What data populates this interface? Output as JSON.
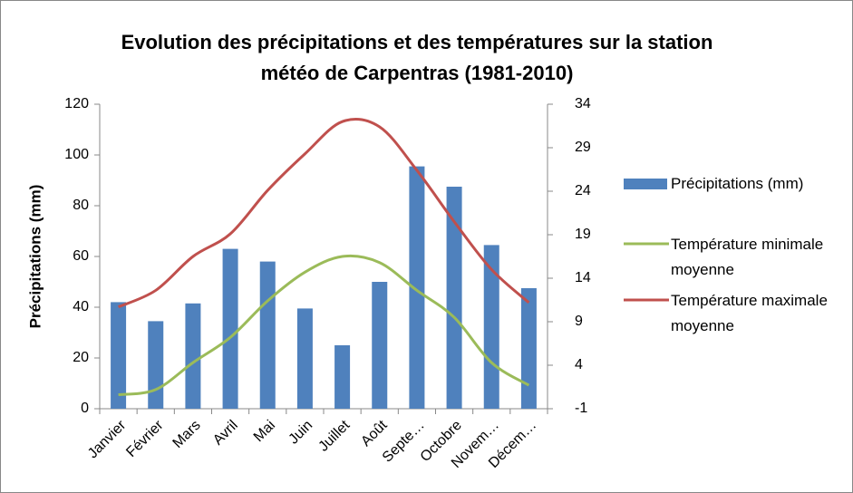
{
  "chart_data": {
    "type": "bar",
    "title": "Evolution des précipitations et des températures sur la station météo de Carpentras (1981-2010)",
    "y_label": "Précipitations (mm)",
    "categories": [
      "Janvier",
      "Février",
      "Mars",
      "Avril",
      "Mai",
      "Juin",
      "Juillet",
      "Août",
      "Septe…",
      "Octobre",
      "Novem…",
      "Décem…"
    ],
    "series": [
      {
        "name": "Précipitations (mm)",
        "type": "bar",
        "color": "#4f81bd",
        "values": [
          42,
          34.5,
          41.5,
          63,
          58,
          39.5,
          25,
          50,
          95.5,
          87.5,
          64.5,
          47.5
        ]
      },
      {
        "name": "Température minimale moyenne",
        "type": "line",
        "axis": "y2",
        "color": "#9bbb59",
        "values": [
          0.6,
          1.2,
          4.3,
          7.2,
          11.4,
          14.7,
          16.5,
          15.8,
          12.6,
          9.5,
          4.3,
          1.7
        ]
      },
      {
        "name": "Température maximale moyenne",
        "type": "line",
        "axis": "y2",
        "color": "#c0504d",
        "values": [
          10.7,
          12.6,
          16.5,
          19.1,
          24.1,
          28.3,
          32,
          31.4,
          26.4,
          20.5,
          15,
          11.2
        ]
      }
    ],
    "ylim": [
      0,
      120
    ],
    "yticks": [
      0,
      20,
      40,
      60,
      80,
      100,
      120
    ],
    "y2lim": [
      -1,
      34
    ],
    "y2ticks": [
      -1,
      4,
      9,
      14,
      19,
      24,
      29,
      34
    ],
    "legend": "right"
  }
}
